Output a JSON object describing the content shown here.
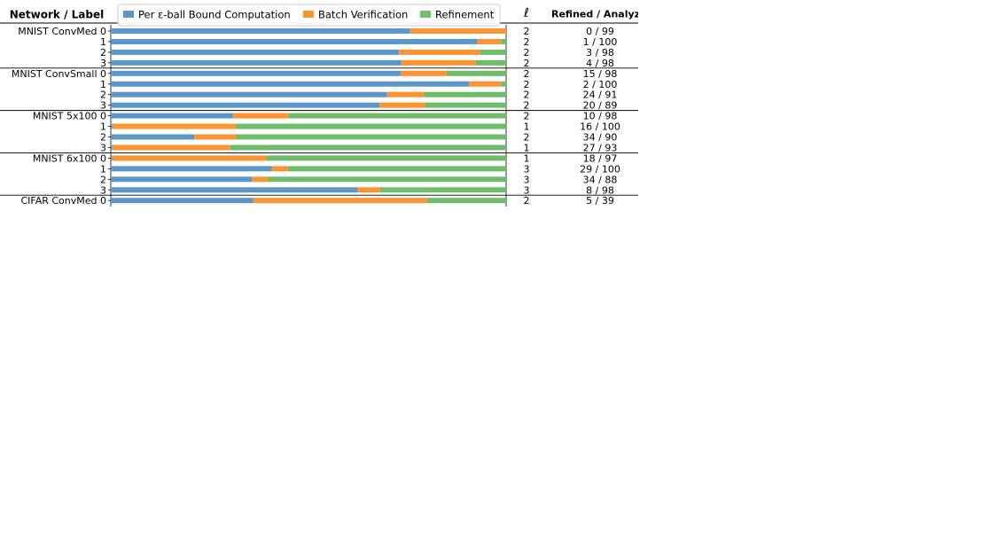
{
  "chart_data": {
    "type": "bar",
    "stacked": true,
    "orientation": "horizontal",
    "normalized": true,
    "xlim": [
      0,
      1
    ],
    "headers": {
      "label_column": "Network / Label",
      "ell_column": "ℓ",
      "refined_column": "Refined / Analyz"
    },
    "legend": {
      "placement": "top",
      "entries": [
        "Per ε-ball Bound Computation",
        "Batch Verification",
        "Refinement"
      ]
    },
    "series_colors": [
      "#5b97c8",
      "#fc9432",
      "#6fbd6a"
    ],
    "groups": [
      {
        "network": "MNIST ConvMed",
        "rows": [
          {
            "label": "0",
            "values": [
              0.757,
              0.243,
              0.0
            ],
            "ell": "2",
            "refined": "0 / 99"
          },
          {
            "label": "1",
            "values": [
              0.927,
              0.06,
              0.013
            ],
            "ell": "2",
            "refined": "1 / 100"
          },
          {
            "label": "2",
            "values": [
              0.729,
              0.205,
              0.066
            ],
            "ell": "2",
            "refined": "3 / 98"
          },
          {
            "label": "3",
            "values": [
              0.735,
              0.188,
              0.077
            ],
            "ell": "2",
            "refined": "4 / 98"
          }
        ]
      },
      {
        "network": "MNIST ConvSmall",
        "rows": [
          {
            "label": "0",
            "values": [
              0.733,
              0.116,
              0.151
            ],
            "ell": "2",
            "refined": "15 / 98"
          },
          {
            "label": "1",
            "values": [
              0.906,
              0.081,
              0.013
            ],
            "ell": "2",
            "refined": "2 / 100"
          },
          {
            "label": "2",
            "values": [
              0.699,
              0.093,
              0.208
            ],
            "ell": "2",
            "refined": "24 / 91"
          },
          {
            "label": "3",
            "values": [
              0.68,
              0.115,
              0.205
            ],
            "ell": "2",
            "refined": "20 / 89"
          }
        ]
      },
      {
        "network": "MNIST 5x100",
        "rows": [
          {
            "label": "0",
            "values": [
              0.309,
              0.14,
              0.551
            ],
            "ell": "2",
            "refined": "10 / 98"
          },
          {
            "label": "1",
            "values": [
              0.004,
              0.313,
              0.683
            ],
            "ell": "1",
            "refined": "16 / 100"
          },
          {
            "label": "2",
            "values": [
              0.211,
              0.106,
              0.683
            ],
            "ell": "2",
            "refined": "34 / 90"
          },
          {
            "label": "3",
            "values": [
              0.004,
              0.298,
              0.698
            ],
            "ell": "1",
            "refined": "27 / 93"
          }
        ]
      },
      {
        "network": "MNIST 6x100",
        "rows": [
          {
            "label": "0",
            "values": [
              0.004,
              0.389,
              0.607
            ],
            "ell": "1",
            "refined": "18 / 97"
          },
          {
            "label": "1",
            "values": [
              0.407,
              0.041,
              0.552
            ],
            "ell": "3",
            "refined": "29 / 100"
          },
          {
            "label": "2",
            "values": [
              0.357,
              0.04,
              0.603
            ],
            "ell": "3",
            "refined": "34 / 88"
          },
          {
            "label": "3",
            "values": [
              0.625,
              0.056,
              0.319
            ],
            "ell": "3",
            "refined": "8 / 98"
          }
        ]
      },
      {
        "network": "CIFAR ConvMed",
        "rows": [
          {
            "label": "0",
            "values": [
              0.36,
              0.44,
              0.2
            ],
            "ell": "2",
            "refined": "5 / 39"
          }
        ]
      }
    ]
  }
}
